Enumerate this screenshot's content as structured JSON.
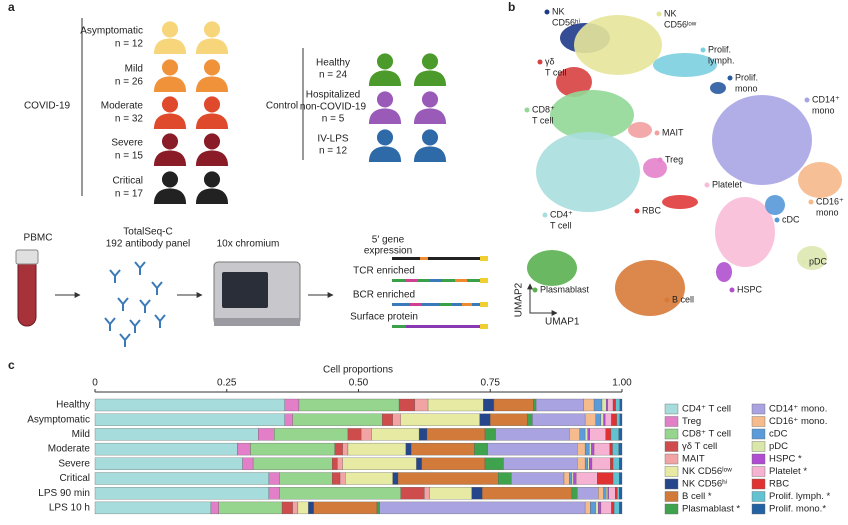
{
  "panel_labels": [
    "a",
    "b",
    "c"
  ],
  "cohort": {
    "covid_label": "COVID-19",
    "covid_groups": [
      [
        "Asymptomatic",
        "n = 12"
      ],
      [
        "Mild",
        "n = 26"
      ],
      [
        "Moderate",
        "n = 32"
      ],
      [
        "Severe",
        "n = 15"
      ],
      [
        "Critical",
        "n = 17"
      ]
    ],
    "control_label": "Control",
    "control_groups": [
      [
        "Healthy",
        "n = 24"
      ],
      [
        "Hospitalized",
        "non-COVID-19",
        "n = 5"
      ],
      [
        "IV-LPS",
        "n = 12"
      ]
    ]
  },
  "workflow": {
    "sample": [
      "PBMC"
    ],
    "antibodies": [
      "TotalSeq-C",
      "192 antibody panel"
    ],
    "instrument": [
      "10x chromium"
    ],
    "outputs": [
      [
        "5′ gene",
        "expression"
      ],
      [
        "TCR enriched"
      ],
      [
        "BCR enriched"
      ],
      [
        "Surface protein"
      ]
    ]
  },
  "umap": {
    "clusters": [
      [
        "NK",
        "CD56ʰⁱ"
      ],
      [
        "NK",
        "CD56ˡᵒʷ"
      ],
      [
        "γδ",
        "T cell"
      ],
      [
        "Prolif.",
        "lymph."
      ],
      [
        "Prolif.",
        "mono"
      ],
      [
        "CD14⁺",
        "mono"
      ],
      [
        "CD8⁺",
        "T cell"
      ],
      [
        "MAIT"
      ],
      [
        "Treg"
      ],
      [
        "Platelet"
      ],
      [
        "CD16⁺",
        "mono"
      ],
      [
        "CD4⁺",
        "T cell"
      ],
      [
        "RBC"
      ],
      [
        "cDC"
      ],
      [
        "pDC"
      ],
      [
        "Plasmablast"
      ],
      [
        "B cell"
      ],
      [
        "HSPC"
      ]
    ],
    "x_axis": "UMAP1",
    "y_axis": "UMAP2"
  },
  "chart_data": {
    "type": "stacked_bar",
    "orientation": "horizontal",
    "xlabel": "Cell proportions",
    "categories": [
      "Healthy",
      "Asymptomatic",
      "Mild",
      "Moderate",
      "Severe",
      "Critical",
      "LPS 90 min",
      "LPS 10 h"
    ],
    "xlim": [
      0,
      1
    ],
    "xticks": [
      0,
      0.25,
      {
        "value": 0.5,
        "label": "0.50"
      },
      0.75,
      {
        "value": 1,
        "label": "1.00"
      }
    ],
    "series": [
      {
        "name": "CD4⁺ T cell",
        "color": "#a6dcdc",
        "values": [
          0.36,
          0.36,
          0.31,
          0.27,
          0.28,
          0.33,
          0.33,
          0.22
        ]
      },
      {
        "name": "Treg",
        "color": "#e27fc8",
        "values": [
          0.027,
          0.015,
          0.03,
          0.025,
          0.02,
          0.02,
          0.02,
          0.015
        ]
      },
      {
        "name": "CD8⁺ T cell",
        "color": "#95d58d",
        "values": [
          0.19,
          0.17,
          0.14,
          0.16,
          0.15,
          0.1,
          0.23,
          0.12
        ]
      },
      {
        "name": "γδ T cell",
        "color": "#cf4c4c",
        "values": [
          0.03,
          0.02,
          0.025,
          0.015,
          0.01,
          0.015,
          0.045,
          0.02
        ]
      },
      {
        "name": "MAIT",
        "color": "#f2a4a4",
        "values": [
          0.025,
          0.015,
          0.02,
          0.01,
          0.01,
          0.01,
          0.01,
          0.01
        ]
      },
      {
        "name": "NK CD56ˡᵒʷ",
        "color": "#e6eaa2",
        "values": [
          0.105,
          0.15,
          0.09,
          0.11,
          0.14,
          0.09,
          0.08,
          0.02
        ]
      },
      {
        "name": "NK CD56ʰⁱ",
        "color": "#26468c",
        "values": [
          0.02,
          0.02,
          0.015,
          0.01,
          0.01,
          0.01,
          0.02,
          0.01
        ]
      },
      {
        "name": "B cell *",
        "color": "#d27a3a",
        "values": [
          0.075,
          0.07,
          0.11,
          0.12,
          0.12,
          0.19,
          0.17,
          0.12
        ]
      },
      {
        "name": "Plasmablast *",
        "color": "#3ea34c",
        "values": [
          0.005,
          0.01,
          0.02,
          0.025,
          0.035,
          0.025,
          0.01,
          0.005
        ]
      },
      {
        "name": "CD14⁺ mono.",
        "color": "#aaa3e2",
        "values": [
          0.09,
          0.1,
          0.14,
          0.17,
          0.14,
          0.1,
          0.04,
          0.39
        ]
      },
      {
        "name": "CD16⁺ mono.",
        "color": "#f6bb8c",
        "values": [
          0.02,
          0.02,
          0.02,
          0.015,
          0.015,
          0.01,
          0.01,
          0.01
        ]
      },
      {
        "name": "cDC",
        "color": "#5b9bd9",
        "values": [
          0.015,
          0.01,
          0.01,
          0.008,
          0.005,
          0.005,
          0.005,
          0.01
        ]
      },
      {
        "name": "pDC",
        "color": "#d9e7aa",
        "values": [
          0.008,
          0.005,
          0.005,
          0.004,
          0.003,
          0.003,
          0.003,
          0.005
        ]
      },
      {
        "name": "HSPC *",
        "color": "#b04cd2",
        "values": [
          0.003,
          0.003,
          0.004,
          0.005,
          0.005,
          0.005,
          0.002,
          0.005
        ]
      },
      {
        "name": "Platelet *",
        "color": "#f6b2d2",
        "values": [
          0.01,
          0.012,
          0.03,
          0.03,
          0.035,
          0.04,
          0.012,
          0.02
        ]
      },
      {
        "name": "RBC",
        "color": "#e03232",
        "values": [
          0.005,
          0.01,
          0.01,
          0.005,
          0.005,
          0.03,
          0.004,
          0.005
        ]
      },
      {
        "name": "Prolif. lymph. *",
        "color": "#62c2d2",
        "values": [
          0.008,
          0.006,
          0.015,
          0.012,
          0.012,
          0.012,
          0.004,
          0.01
        ]
      },
      {
        "name": "Prolif. mono.*",
        "color": "#2262a2",
        "values": [
          0.004,
          0.004,
          0.006,
          0.006,
          0.005,
          0.005,
          0.005,
          0.005
        ]
      }
    ]
  }
}
